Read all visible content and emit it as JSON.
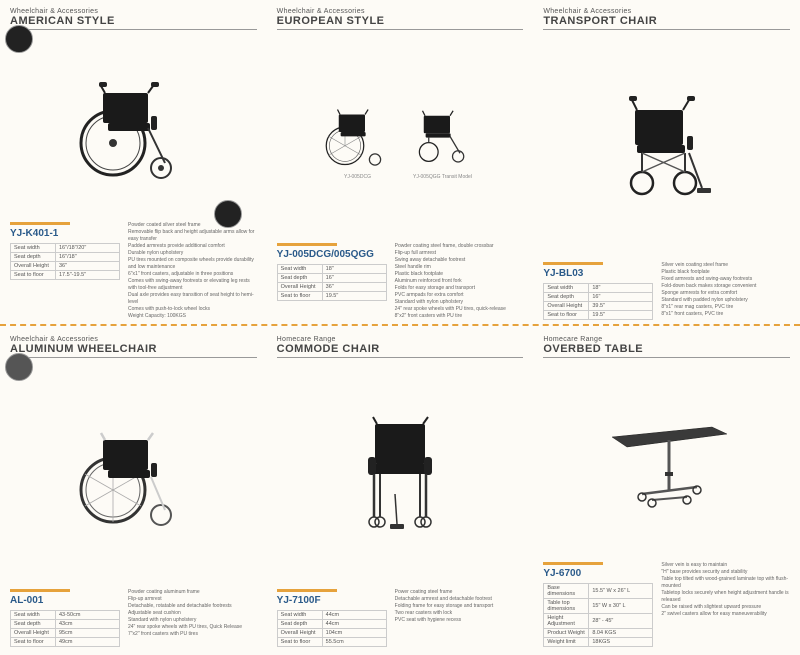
{
  "colors": {
    "accent": "#e6a23c",
    "sku": "#2a5a8a",
    "border": "#ccc",
    "text": "#555"
  },
  "products": [
    {
      "category": "Wheelchair & Accessories",
      "title": "AMERICAN STYLE",
      "sku": "YJ-K401-1",
      "specs": [
        [
          "Seat width",
          "16\"/18\"/20\""
        ],
        [
          "Seat depth",
          "16\"/18\""
        ],
        [
          "Overall Height",
          "36\""
        ],
        [
          "Seat to floor",
          "17.5\"-19.5\""
        ]
      ],
      "features": [
        "Powder coated silver steel frame",
        "Removable flip back and height adjustable arms allow for easy transfer",
        "Padded armrests provide additional comfort",
        "Durable nylon upholstery",
        "PU tires mounted on composite wheels provide durability and low maintenance",
        "6\"x1\" front casters, adjustable in three positions",
        "Comes with swing-away footrests or elevating leg rests with tool-free adjustment",
        "Dual axle provides easy transition of seat height to hemi-level",
        "Comes with push-to-lock wheel locks",
        "Weight Capacity: 100KGS"
      ]
    },
    {
      "category": "Wheelchair & Accessories",
      "title": "EUROPEAN STYLE",
      "sku": "YJ-005DCG/005QGG",
      "models": [
        "YJ-005DCG",
        "YJ-005QGG Transit Model"
      ],
      "specs": [
        [
          "Seat width",
          "18\""
        ],
        [
          "Seat depth",
          "16\""
        ],
        [
          "Overall Height",
          "36\""
        ],
        [
          "Seat to floor",
          "19.5\""
        ]
      ],
      "features": [
        "Powder coating steel frame, double crossbar",
        "Flip-up full armrest",
        "Swing away detachable footrest",
        "Steel handle rim",
        "Plastic black footplate",
        "Aluminum reinforced front fork",
        "Folds for easy storage and transport",
        "PVC armpads for extra comfort",
        "Standard with nylon upholstery",
        "24\" rear spoke wheels with PU tires, quick-release",
        "8\"x2\" front casters with PU tire"
      ]
    },
    {
      "category": "Wheelchair & Accessories",
      "title": "TRANSPORT CHAIR",
      "sku": "YJ-BL03",
      "specs": [
        [
          "Seat width",
          "18\""
        ],
        [
          "Seat depth",
          "16\""
        ],
        [
          "Overall Height",
          "39.5\""
        ],
        [
          "Seat to floor",
          "19.5\""
        ]
      ],
      "features": [
        "Silver vein coating steel frame",
        "Plastic black footplate",
        "Fixed armrests and swing-away footrests",
        "Fold-down back makes storage convenient",
        "Sponge armrests for extra comfort",
        "Standard with padded nylon upholstery",
        "8\"x1\" rear mag casters, PVC tire",
        "8\"x1\" front casters, PVC tire"
      ]
    },
    {
      "category": "Wheelchair & Accessories",
      "title": "ALUMINUM WHEELCHAIR",
      "sku": "AL-001",
      "specs": [
        [
          "Seat width",
          "43-50cm"
        ],
        [
          "Seat depth",
          "43cm"
        ],
        [
          "Overall Height",
          "95cm"
        ],
        [
          "Seat to floor",
          "49cm"
        ]
      ],
      "features": [
        "Powder coating aluminum frame",
        "Flip-up armrest",
        "Detachable, rotatable and detachable footrests",
        "Adjustable seat cushion",
        "Standard with nylon upholstery",
        "24\" rear spoke wheels with PU tires, Quick Release",
        "7\"x2\" front casters with PU tires"
      ]
    },
    {
      "category": "Homecare Range",
      "title": "COMMODE CHAIR",
      "sku": "YJ-7100F",
      "specs": [
        [
          "Seat width",
          "44cm"
        ],
        [
          "Seat depth",
          "44cm"
        ],
        [
          "Overall Height",
          "104cm"
        ],
        [
          "Seat to floor",
          "55.5cm"
        ]
      ],
      "features": [
        "Power coating steel frame",
        "Detachable armrest and detachable footrest",
        "Folding frame for easy storage and transport",
        "Two rear casters with lock",
        "PVC seat with hygiene recess"
      ]
    },
    {
      "category": "Homecare Range",
      "title": "OVERBED TABLE",
      "sku": "YJ-6700",
      "specs": [
        [
          "Base dimensions",
          "15.5\" W x 26\" L"
        ],
        [
          "Table top dimensions",
          "15\" W x 30\" L"
        ],
        [
          "Height Adjustment",
          "28\" - 45\""
        ],
        [
          "Product Weight",
          "8.04 KGS"
        ],
        [
          "Weight limit",
          "18KGS"
        ]
      ],
      "features": [
        "Silver vein is easy to maintain",
        "\"H\" base provides security and stability",
        "Table top tilted with wood-grained laminate top with flush-mounted",
        "Tabletop locks securely when height adjustment handle is released",
        "Can be raised with slightest upward pressure",
        "2\" swivel casters allow for easy maneuverability"
      ]
    }
  ]
}
